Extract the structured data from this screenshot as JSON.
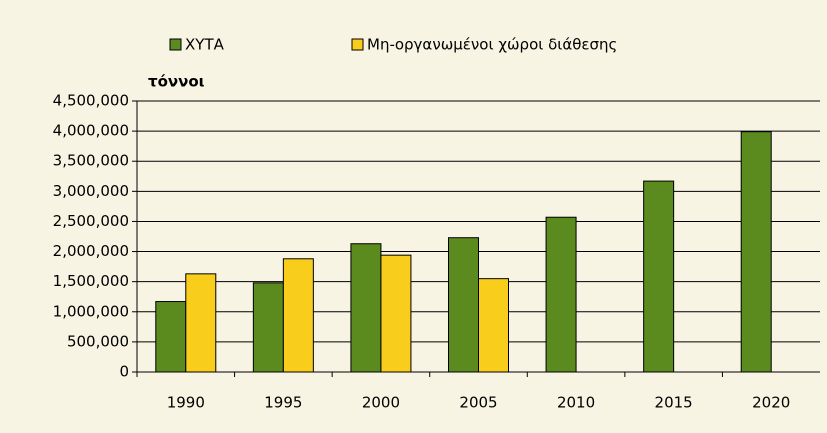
{
  "chart_data": {
    "type": "bar",
    "y_label": "τόννοι",
    "categories": [
      "1990",
      "1995",
      "2000",
      "2005",
      "2010",
      "2015",
      "2020"
    ],
    "series": [
      {
        "name": "ΧΥΤΑ",
        "color": "#5b8a1f",
        "values": [
          1170000,
          1480000,
          2130000,
          2230000,
          2570000,
          3170000,
          3990000
        ]
      },
      {
        "name": "Μη-οργανωμένοι χώροι διάθεσης",
        "color": "#f8cd1c",
        "values": [
          1630000,
          1880000,
          1940000,
          1550000,
          null,
          null,
          null
        ]
      }
    ],
    "ylim": [
      0,
      4500000
    ],
    "yticks": [
      0,
      {
        "value": 500000,
        "label": "500,000"
      },
      {
        "value": 1000000,
        "label": "1,000,000"
      },
      {
        "value": 1500000,
        "label": "1,500,000"
      },
      {
        "value": 2000000,
        "label": "2,000,000"
      },
      {
        "value": 2500000,
        "label": "2,500,000"
      },
      {
        "value": 3000000,
        "label": "3,000,000"
      },
      {
        "value": 3500000,
        "label": "3,500,000"
      },
      {
        "value": 4000000,
        "label": "4,000,000"
      },
      {
        "value": 4500000,
        "label": "4,500,000"
      }
    ],
    "grid": true,
    "legend": "top"
  }
}
